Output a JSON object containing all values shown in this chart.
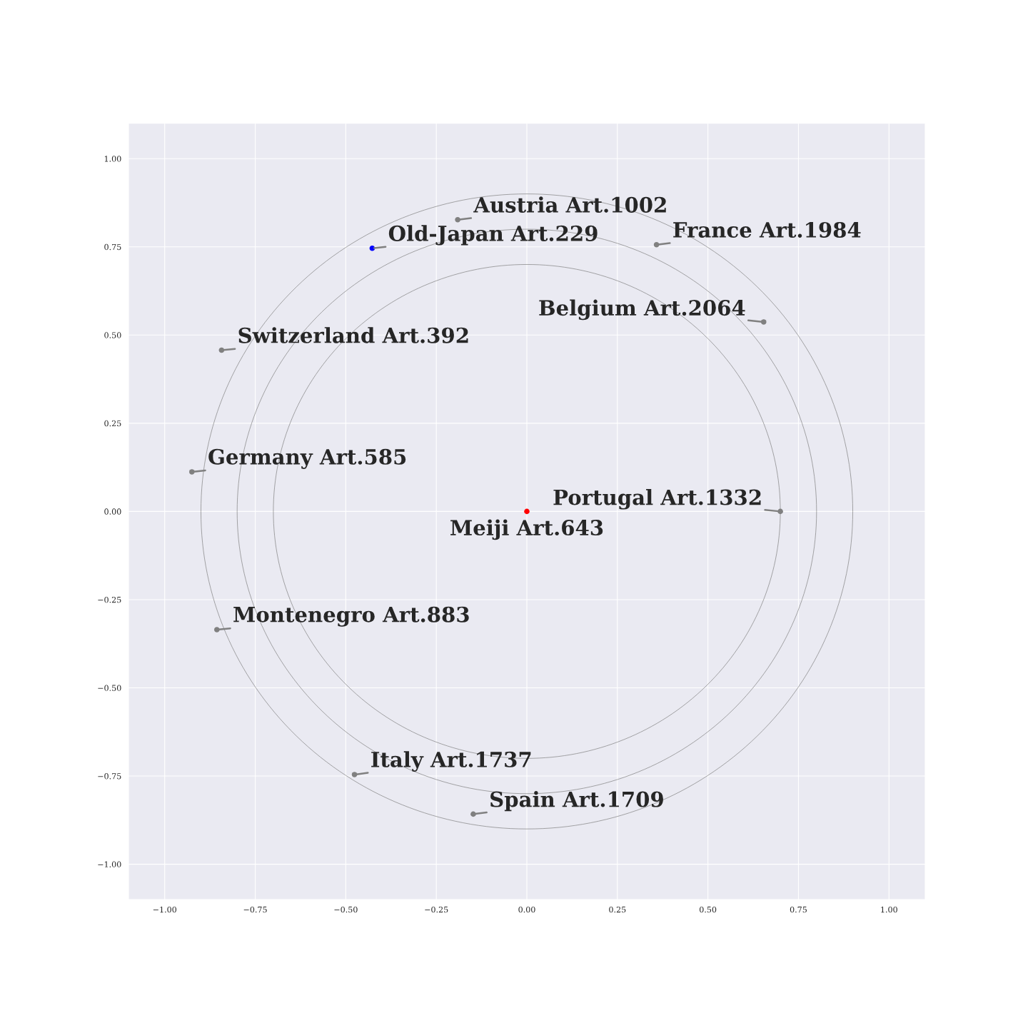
{
  "chart_data": {
    "type": "scatter",
    "xlim": [
      -1.1,
      1.1
    ],
    "ylim": [
      -1.1,
      1.1
    ],
    "xticks": [
      {
        "value": -1.0,
        "label": "−1.00"
      },
      {
        "value": -0.75,
        "label": "−0.75"
      },
      {
        "value": -0.5,
        "label": "−0.50"
      },
      {
        "value": -0.25,
        "label": "−0.25"
      },
      {
        "value": 0.0,
        "label": "0.00"
      },
      {
        "value": 0.25,
        "label": "0.25"
      },
      {
        "value": 0.5,
        "label": "0.50"
      },
      {
        "value": 0.75,
        "label": "0.75"
      },
      {
        "value": 1.0,
        "label": "1.00"
      }
    ],
    "yticks": [
      {
        "value": -1.0,
        "label": "−1.00"
      },
      {
        "value": -0.75,
        "label": "−0.75"
      },
      {
        "value": -0.5,
        "label": "−0.50"
      },
      {
        "value": -0.25,
        "label": "−0.25"
      },
      {
        "value": 0.0,
        "label": "0.00"
      },
      {
        "value": 0.25,
        "label": "0.25"
      },
      {
        "value": 0.5,
        "label": "0.50"
      },
      {
        "value": 0.75,
        "label": "0.75"
      },
      {
        "value": 1.0,
        "label": "1.00"
      }
    ],
    "grid": true,
    "marker": "circle",
    "series": [
      {
        "x": [
          0,
          0.7,
          0.654,
          0.358,
          -0.191,
          -0.427,
          -0.843,
          -0.925,
          -0.856,
          -0.476,
          -0.148
        ],
        "values": [
          0,
          0,
          0.537,
          0.756,
          0.827,
          0.746,
          0.457,
          0.112,
          -0.335,
          -0.746,
          -0.858
        ],
        "colors": [
          "#ff0000",
          "#808080",
          "#808080",
          "#808080",
          "#808080",
          "#0000ff",
          "#808080",
          "#808080",
          "#808080",
          "#808080",
          "#808080"
        ]
      }
    ],
    "annotations": [
      {
        "text": "Meiji Art.643",
        "x": 0,
        "y": 0
      },
      {
        "text": "Portugal Art.1332",
        "x": 0.7,
        "y": 0
      },
      {
        "text": "Belgium Art.2064",
        "x": 0.654,
        "y": 0.537
      },
      {
        "text": "France Art.1984",
        "x": 0.358,
        "y": 0.756
      },
      {
        "text": "Austria Art.1002",
        "x": -0.191,
        "y": 0.827
      },
      {
        "text": "Old-Japan Art.229",
        "x": -0.427,
        "y": 0.746
      },
      {
        "text": "Switzerland Art.392",
        "x": -0.843,
        "y": 0.457
      },
      {
        "text": "Germany Art.585",
        "x": -0.925,
        "y": 0.112
      },
      {
        "text": "Montenegro Art.883",
        "x": -0.856,
        "y": -0.335
      },
      {
        "text": "Italy Art.1737",
        "x": -0.476,
        "y": -0.746
      },
      {
        "text": "Spain Art.1709",
        "x": -0.148,
        "y": -0.858
      }
    ]
  }
}
